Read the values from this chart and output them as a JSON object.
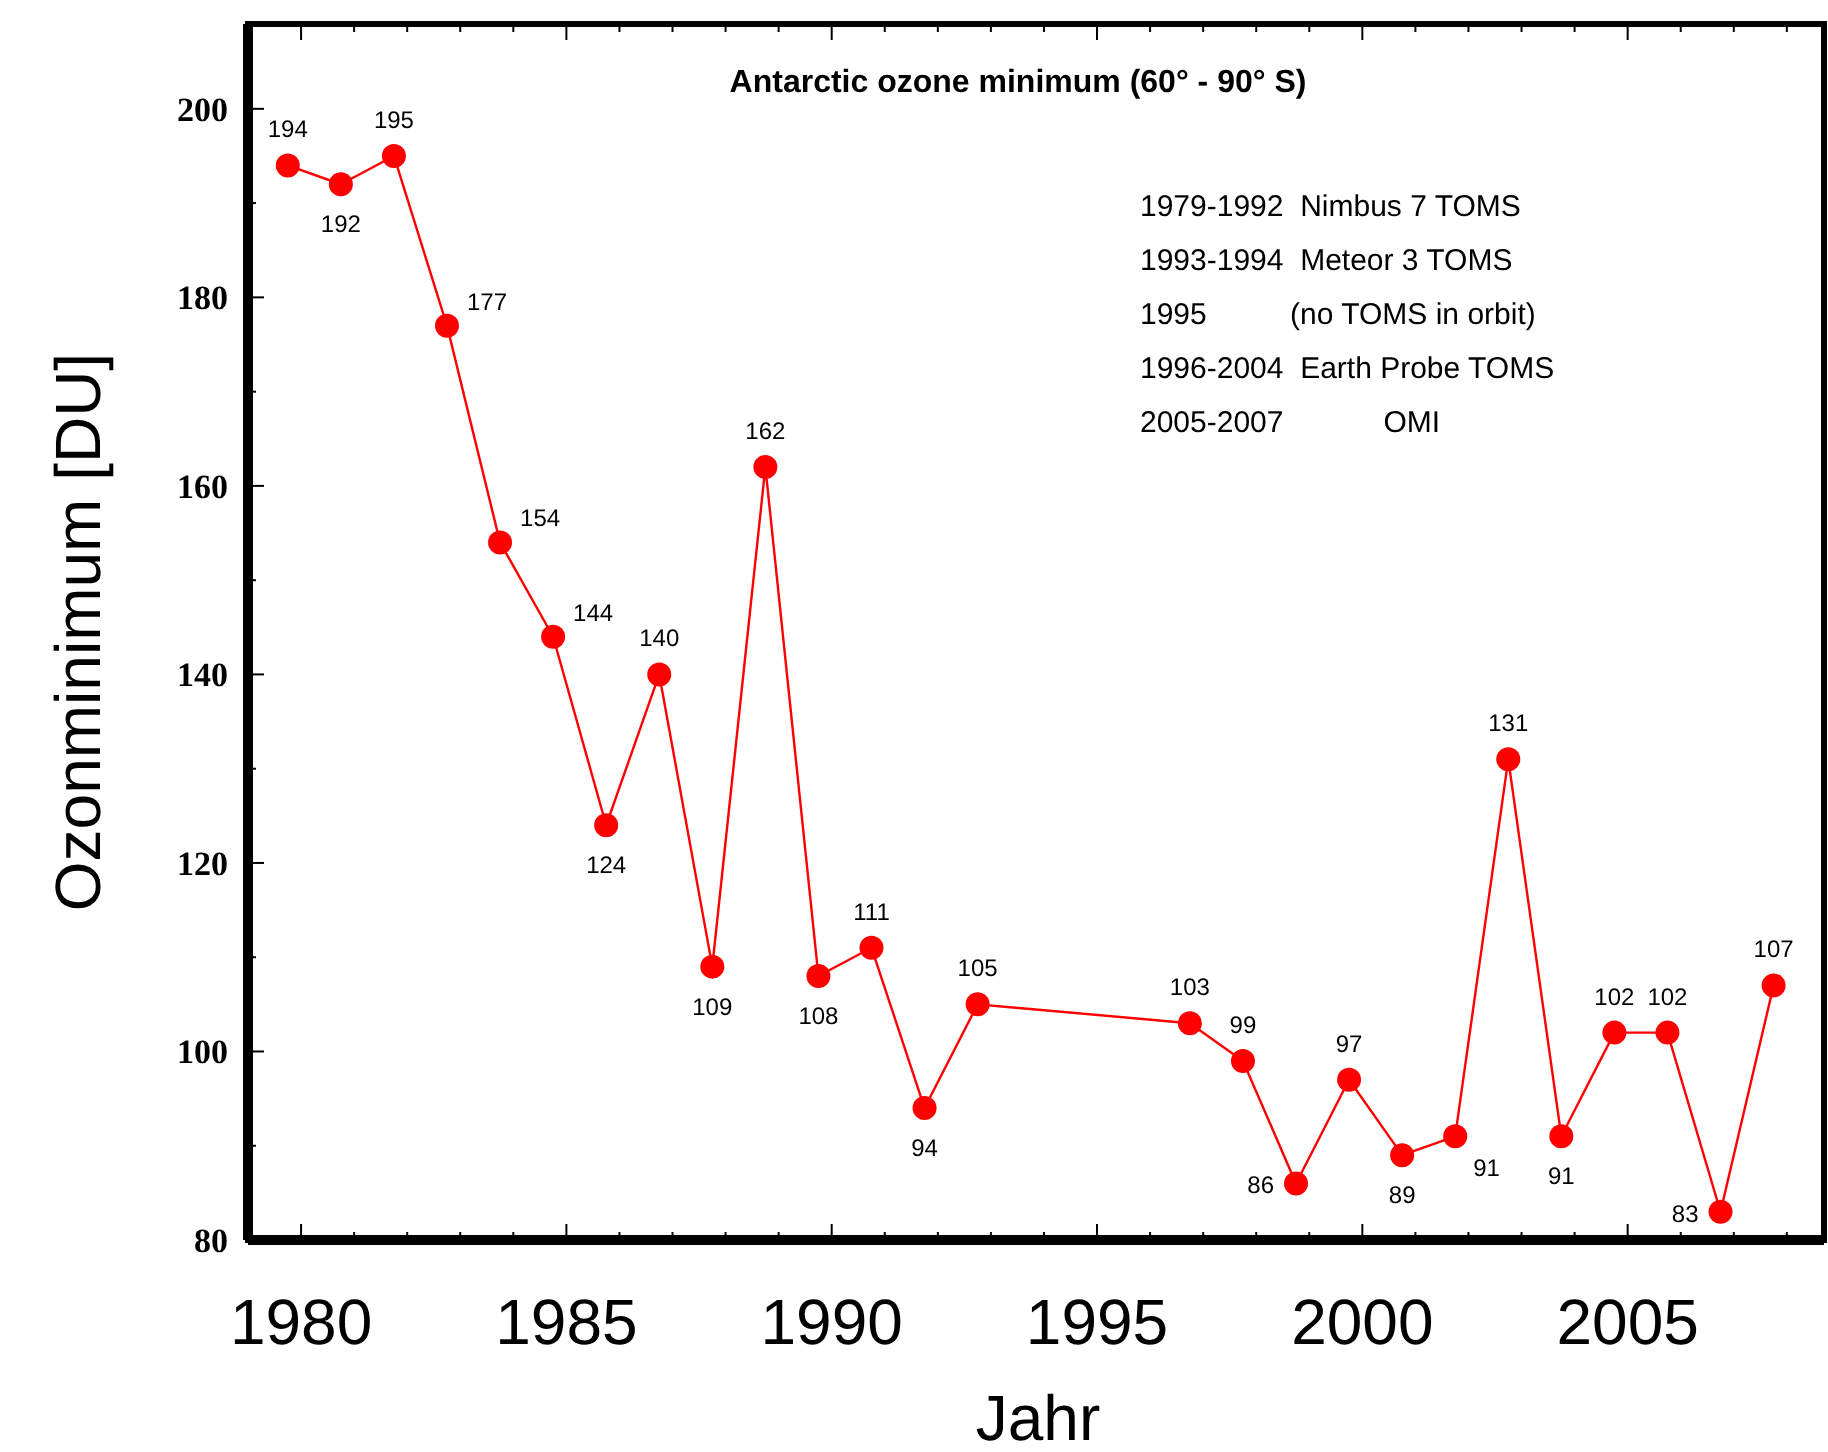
{
  "chart_data": {
    "type": "line",
    "title": "Antarctic ozone minimum (60° - 90° S)",
    "xlabel": "Jahr",
    "ylabel": "Ozonminimum [DU]",
    "annotations": [
      "1979-1992  Nimbus 7 TOMS",
      "1993-1994  Meteor 3 TOMS",
      "1995          (no TOMS in orbit)",
      "1996-2004  Earth Probe TOMS",
      "2005-2007            OMI"
    ],
    "x": [
      1979.75,
      1980.75,
      1981.75,
      1982.75,
      1983.75,
      1984.75,
      1985.75,
      1986.75,
      1987.75,
      1988.75,
      1989.75,
      1990.75,
      1991.75,
      1992.75,
      1996.75,
      1997.75,
      1998.75,
      1999.75,
      2000.75,
      2001.75,
      2002.75,
      2003.75,
      2004.75,
      2005.75,
      2006.75,
      2007.75
    ],
    "series": [
      {
        "color": "#ff0000",
        "values": [
          194,
          192,
          195,
          177,
          154,
          144,
          124,
          140,
          109,
          162,
          108,
          111,
          94,
          105,
          103,
          99,
          86,
          97,
          89,
          91,
          131,
          91,
          102,
          102,
          83,
          107
        ]
      }
    ],
    "xlim": [
      1979,
      2008.7
    ],
    "ylim": [
      80,
      209
    ],
    "xticks": [
      {
        "value": 1979,
        "label": null
      },
      1980,
      {
        "value": 1981,
        "label": null
      },
      {
        "value": 1982,
        "label": null
      },
      {
        "value": 1983,
        "label": null
      },
      {
        "value": 1984,
        "label": null
      },
      1985,
      {
        "value": 1986,
        "label": null
      },
      {
        "value": 1987,
        "label": null
      },
      {
        "value": 1988,
        "label": null
      },
      {
        "value": 1989,
        "label": null
      },
      1990,
      {
        "value": 1991,
        "label": null
      },
      {
        "value": 1992,
        "label": null
      },
      {
        "value": 1993,
        "label": null
      },
      {
        "value": 1994,
        "label": null
      },
      1995,
      {
        "value": 1996,
        "label": null
      },
      {
        "value": 1997,
        "label": null
      },
      {
        "value": 1998,
        "label": null
      },
      {
        "value": 1999,
        "label": null
      },
      2000,
      {
        "value": 2001,
        "label": null
      },
      {
        "value": 2002,
        "label": null
      },
      {
        "value": 2003,
        "label": null
      },
      {
        "value": 2004,
        "label": null
      },
      2005,
      {
        "value": 2006,
        "label": null
      },
      {
        "value": 2007,
        "label": null
      },
      {
        "value": 2008,
        "label": null
      }
    ],
    "yticks": [
      80,
      {
        "value": 90,
        "label": null
      },
      100,
      {
        "value": 110,
        "label": null
      },
      120,
      {
        "value": 130,
        "label": null
      },
      140,
      {
        "value": 150,
        "label": null
      },
      160,
      {
        "value": 170,
        "label": null
      },
      180,
      {
        "value": 190,
        "label": null
      },
      200
    ],
    "data_labels": true,
    "marker": "circle",
    "line_style": "solid",
    "grid": false
  }
}
